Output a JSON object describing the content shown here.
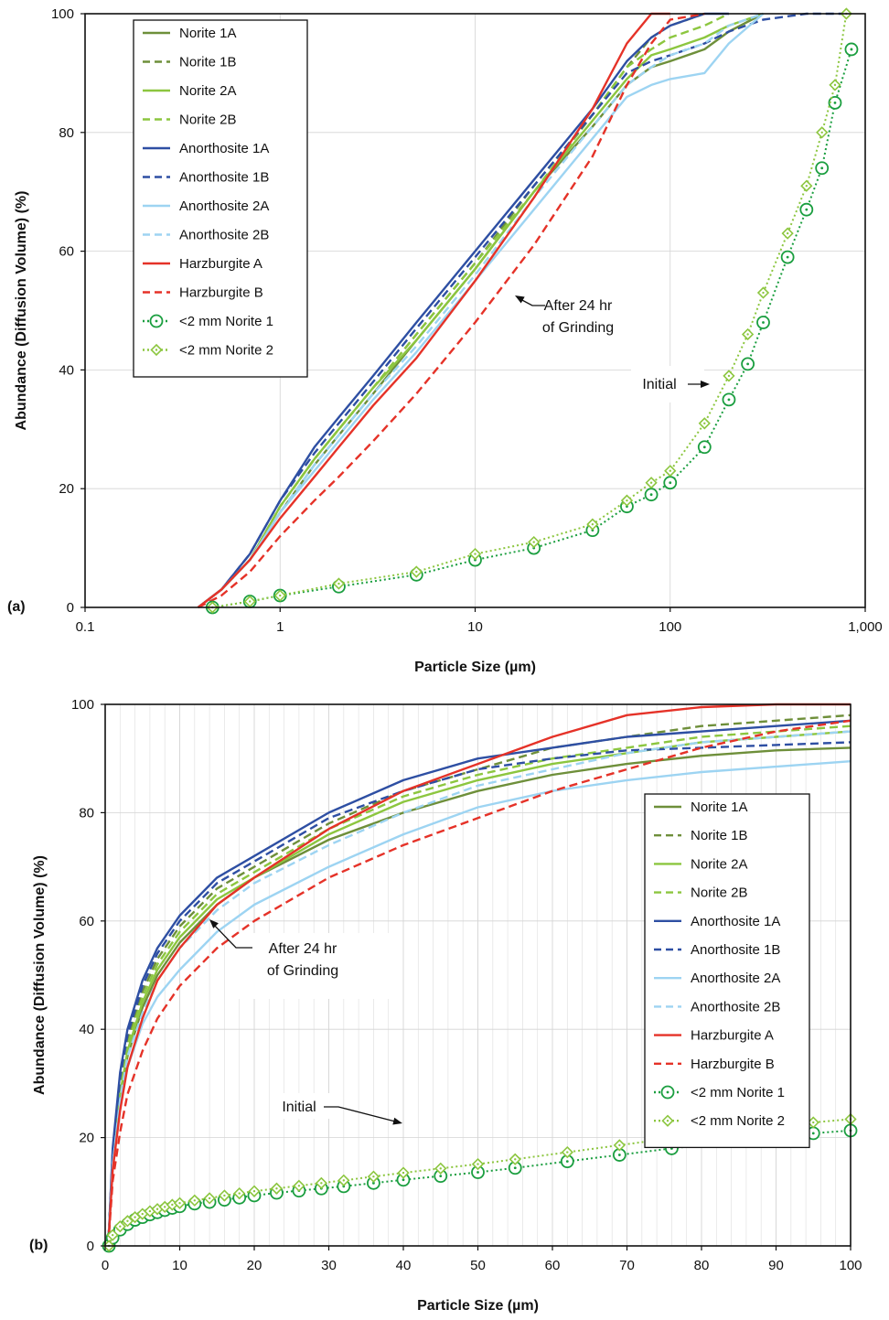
{
  "colors": {
    "norite1A": "#6e8f3a",
    "norite1B": "#6e8f3a",
    "norite2A": "#8cc63f",
    "norite2B": "#8cc63f",
    "anorthosite1A": "#2e4fa3",
    "anorthosite1B": "#2e4fa3",
    "anorthosite2A": "#9dd4f2",
    "anorthosite2B": "#9dd4f2",
    "harzburgiteA": "#e53228",
    "harzburgiteB": "#e53228",
    "initial1": "#1a9e3f",
    "initial2": "#8cc63f"
  },
  "legend_labels": [
    "Norite 1A",
    "Norite 1B",
    "Norite 2A",
    "Norite 2B",
    "Anorthosite 1A",
    "Anorthosite 1B",
    "Anorthosite 2A",
    "Anorthosite 2B",
    "Harzburgite A",
    "Harzburgite B",
    "<2 mm Norite 1",
    "<2 mm Norite 2"
  ],
  "chart_data": [
    {
      "panel": "(a)",
      "type": "line",
      "xlabel": "Particle Size (µm)",
      "ylabel": "Abundance (Diffusion Volume) (%)",
      "xscale": "log",
      "xlim": [
        0.1,
        1000
      ],
      "ylim": [
        0,
        100
      ],
      "xticks": [
        "0.1",
        "1",
        "10",
        "100",
        "1,000"
      ],
      "yticks": [
        "0",
        "20",
        "40",
        "60",
        "80",
        "100"
      ],
      "grid": true,
      "legend_position": "top-left",
      "annotations": [
        {
          "text": [
            "After 24 hr",
            "of Grinding"
          ]
        },
        {
          "text": [
            "Initial"
          ]
        }
      ],
      "series": [
        {
          "name": "Norite 1A",
          "style": "solid",
          "x": [
            0.38,
            0.5,
            0.7,
            1,
            1.5,
            2,
            3,
            5,
            10,
            20,
            40,
            60,
            80,
            100,
            150,
            200,
            300
          ],
          "y": [
            0,
            3,
            8,
            16,
            24,
            29,
            36,
            45,
            57,
            70,
            81,
            88,
            91,
            92,
            94,
            97,
            100
          ]
        },
        {
          "name": "Norite 1B",
          "style": "dashed",
          "x": [
            0.38,
            0.5,
            0.7,
            1,
            1.5,
            2,
            3,
            5,
            10,
            20,
            40,
            60,
            80,
            100,
            150
          ],
          "y": [
            0,
            3,
            8,
            17,
            25,
            30,
            37,
            46,
            58,
            71,
            83,
            91,
            96,
            98,
            100
          ]
        },
        {
          "name": "Norite 2A",
          "style": "solid",
          "x": [
            0.38,
            0.5,
            0.7,
            1,
            1.5,
            2,
            3,
            5,
            10,
            20,
            40,
            60,
            80,
            100,
            150,
            200,
            300
          ],
          "y": [
            0,
            3,
            8,
            17,
            25,
            30,
            37,
            45,
            57,
            70,
            82,
            89,
            93,
            94,
            96,
            98,
            100
          ]
        },
        {
          "name": "Norite 2B",
          "style": "dashed",
          "x": [
            0.38,
            0.5,
            0.7,
            1,
            1.5,
            2,
            3,
            5,
            10,
            20,
            40,
            60,
            80,
            100,
            150,
            200
          ],
          "y": [
            0,
            3,
            8,
            17,
            25,
            30,
            37,
            46,
            58,
            70,
            83,
            91,
            94,
            96,
            98,
            100
          ]
        },
        {
          "name": "Anorthosite 1A",
          "style": "solid",
          "x": [
            0.38,
            0.5,
            0.7,
            1,
            1.5,
            2,
            3,
            5,
            10,
            20,
            40,
            60,
            80,
            100,
            150,
            200
          ],
          "y": [
            0,
            3,
            9,
            18,
            27,
            32,
            39,
            48,
            60,
            72,
            84,
            92,
            96,
            98,
            100,
            100
          ]
        },
        {
          "name": "Anorthosite 1B",
          "style": "dashed",
          "x": [
            0.38,
            0.5,
            0.7,
            1,
            1.5,
            2,
            3,
            5,
            10,
            20,
            40,
            60,
            80,
            100,
            150,
            200,
            300,
            500,
            800
          ],
          "y": [
            0,
            3,
            9,
            18,
            26,
            31,
            38,
            47,
            59,
            71,
            83,
            90,
            92,
            93,
            95,
            97,
            99,
            100,
            100
          ]
        },
        {
          "name": "Anorthosite 2A",
          "style": "solid",
          "x": [
            0.38,
            0.5,
            0.7,
            1,
            1.5,
            2,
            3,
            5,
            10,
            20,
            40,
            60,
            80,
            100,
            150,
            200,
            300
          ],
          "y": [
            0,
            3,
            8,
            16,
            23,
            28,
            35,
            43,
            55,
            67,
            79,
            86,
            88,
            89,
            90,
            95,
            100
          ]
        },
        {
          "name": "Anorthosite 2B",
          "style": "dashed",
          "x": [
            0.38,
            0.5,
            0.7,
            1,
            1.5,
            2,
            3,
            5,
            10,
            20,
            40,
            60,
            80,
            100,
            150,
            200,
            300
          ],
          "y": [
            0,
            3,
            8,
            16,
            24,
            29,
            36,
            44,
            56,
            69,
            81,
            88,
            91,
            93,
            95,
            98,
            100
          ]
        },
        {
          "name": "Harzburgite A",
          "style": "solid",
          "x": [
            0.38,
            0.5,
            0.7,
            1,
            1.5,
            2,
            3,
            5,
            10,
            20,
            40,
            60,
            80,
            100
          ],
          "y": [
            0,
            3,
            8,
            15,
            22,
            27,
            34,
            42,
            55,
            69,
            84,
            95,
            100,
            100
          ]
        },
        {
          "name": "Harzburgite B",
          "style": "dashed",
          "x": [
            0.38,
            0.5,
            0.7,
            1,
            1.5,
            2,
            3,
            5,
            10,
            20,
            40,
            60,
            80,
            100,
            150
          ],
          "y": [
            0,
            2,
            6,
            12,
            18,
            22,
            28,
            36,
            48,
            61,
            76,
            88,
            95,
            99,
            100
          ]
        },
        {
          "name": "<2 mm Norite 1",
          "style": "dotted-circle",
          "x": [
            0.45,
            0.7,
            1,
            2,
            5,
            10,
            20,
            40,
            60,
            80,
            100,
            150,
            200,
            250,
            300,
            400,
            500,
            600,
            700,
            850
          ],
          "y": [
            0,
            1,
            2,
            3.5,
            5.5,
            8,
            10,
            13,
            17,
            19,
            21,
            27,
            35,
            41,
            48,
            59,
            67,
            74,
            85,
            94
          ]
        },
        {
          "name": "<2 mm Norite 2",
          "style": "dotted-diamond",
          "x": [
            0.45,
            0.7,
            1,
            2,
            5,
            10,
            20,
            40,
            60,
            80,
            100,
            150,
            200,
            250,
            300,
            400,
            500,
            600,
            700,
            800
          ],
          "y": [
            0,
            1,
            2,
            4,
            6,
            9,
            11,
            14,
            18,
            21,
            23,
            31,
            39,
            46,
            53,
            63,
            71,
            80,
            88,
            100
          ]
        }
      ]
    },
    {
      "panel": "(b)",
      "type": "line",
      "xlabel": "Particle Size (µm)",
      "ylabel": "Abundance (Diffusion Volume) (%)",
      "xscale": "linear",
      "xlim": [
        0,
        100
      ],
      "ylim": [
        0,
        100
      ],
      "xticks": [
        "0",
        "10",
        "20",
        "30",
        "40",
        "50",
        "60",
        "70",
        "80",
        "90",
        "100"
      ],
      "yticks": [
        "0",
        "20",
        "40",
        "60",
        "80",
        "100"
      ],
      "grid": true,
      "legend_position": "right",
      "annotations": [
        {
          "text": [
            "After 24 hr",
            "of Grinding"
          ]
        },
        {
          "text": [
            "Initial"
          ]
        }
      ],
      "series": [
        {
          "name": "Norite 1A",
          "style": "solid",
          "x": [
            0.4,
            1,
            2,
            3,
            5,
            7,
            10,
            15,
            20,
            30,
            40,
            50,
            60,
            70,
            80,
            90,
            100
          ],
          "y": [
            0,
            15,
            27,
            35,
            44,
            50,
            56,
            63,
            68,
            75,
            80,
            84,
            87,
            89,
            90.5,
            91.5,
            92
          ]
        },
        {
          "name": "Norite 1B",
          "style": "dashed",
          "x": [
            0.4,
            1,
            2,
            3,
            5,
            7,
            10,
            15,
            20,
            30,
            40,
            50,
            60,
            70,
            80,
            90,
            100
          ],
          "y": [
            0,
            17,
            30,
            38,
            47,
            53,
            59,
            66,
            70,
            78,
            84,
            88,
            92,
            94,
            96,
            97,
            98
          ]
        },
        {
          "name": "Norite 2A",
          "style": "solid",
          "x": [
            0.4,
            1,
            2,
            3,
            5,
            7,
            10,
            15,
            20,
            30,
            40,
            50,
            60,
            70,
            80,
            90,
            100
          ],
          "y": [
            0,
            16,
            28,
            36,
            45,
            51,
            57,
            64,
            68,
            76,
            82,
            86,
            89,
            91,
            93,
            94,
            95
          ]
        },
        {
          "name": "Norite 2B",
          "style": "dashed",
          "x": [
            0.4,
            1,
            2,
            3,
            5,
            7,
            10,
            15,
            20,
            30,
            40,
            50,
            60,
            70,
            80,
            90,
            100
          ],
          "y": [
            0,
            16,
            29,
            37,
            46,
            52,
            58,
            65,
            69,
            77,
            83,
            87,
            90,
            92,
            94,
            95,
            96
          ]
        },
        {
          "name": "Anorthosite 1A",
          "style": "solid",
          "x": [
            0.4,
            1,
            2,
            3,
            5,
            7,
            10,
            15,
            20,
            30,
            40,
            50,
            60,
            70,
            80,
            90,
            100
          ],
          "y": [
            0,
            18,
            32,
            40,
            49,
            55,
            61,
            68,
            72,
            80,
            86,
            90,
            92,
            94,
            95,
            96,
            97
          ]
        },
        {
          "name": "Anorthosite 1B",
          "style": "dashed",
          "x": [
            0.4,
            1,
            2,
            3,
            5,
            7,
            10,
            15,
            20,
            30,
            40,
            50,
            60,
            70,
            80,
            90,
            100
          ],
          "y": [
            0,
            17,
            31,
            39,
            48,
            54,
            60,
            67,
            71,
            79,
            84,
            88,
            90,
            91.5,
            92,
            92.5,
            93
          ]
        },
        {
          "name": "Anorthosite 2A",
          "style": "solid",
          "x": [
            0.4,
            1,
            2,
            3,
            5,
            7,
            10,
            15,
            20,
            30,
            40,
            50,
            60,
            70,
            80,
            90,
            100
          ],
          "y": [
            0,
            15,
            26,
            33,
            41,
            46,
            51,
            58,
            63,
            70,
            76,
            81,
            84,
            86,
            87.5,
            88.5,
            89.5
          ]
        },
        {
          "name": "Anorthosite 2B",
          "style": "dashed",
          "x": [
            0.4,
            1,
            2,
            3,
            5,
            7,
            10,
            15,
            20,
            30,
            40,
            50,
            60,
            70,
            80,
            90,
            100
          ],
          "y": [
            0,
            15,
            27,
            35,
            43,
            49,
            55,
            62,
            67,
            74,
            80,
            85,
            88,
            91,
            93,
            94,
            95
          ]
        },
        {
          "name": "Harzburgite A",
          "style": "solid",
          "x": [
            0.4,
            1,
            2,
            3,
            5,
            7,
            10,
            15,
            20,
            30,
            40,
            50,
            60,
            70,
            80,
            90,
            100
          ],
          "y": [
            0,
            14,
            25,
            33,
            42,
            49,
            55,
            63,
            68,
            77,
            84,
            89,
            94,
            98,
            99.5,
            100,
            100
          ]
        },
        {
          "name": "Harzburgite B",
          "style": "dashed",
          "x": [
            0.4,
            1,
            2,
            3,
            5,
            7,
            10,
            15,
            20,
            30,
            40,
            50,
            60,
            70,
            80,
            90,
            100
          ],
          "y": [
            0,
            12,
            21,
            28,
            36,
            42,
            48,
            55,
            60,
            68,
            74,
            79,
            84,
            88,
            92,
            95,
            97
          ]
        },
        {
          "name": "<2 mm Norite 1",
          "style": "dotted-circle",
          "x": [
            0.5,
            1,
            2,
            3,
            4,
            5,
            6,
            7,
            8,
            9,
            10,
            12,
            14,
            16,
            18,
            20,
            23,
            26,
            29,
            32,
            36,
            40,
            45,
            50,
            55,
            62,
            69,
            76,
            85,
            95,
            100
          ],
          "y": [
            0,
            1.5,
            3,
            4,
            4.8,
            5.3,
            5.8,
            6.2,
            6.6,
            7,
            7.3,
            7.8,
            8.1,
            8.5,
            8.9,
            9.3,
            9.8,
            10.2,
            10.6,
            11,
            11.6,
            12.2,
            12.9,
            13.6,
            14.4,
            15.6,
            16.8,
            18,
            19.4,
            20.8,
            21.3
          ]
        },
        {
          "name": "<2 mm Norite 2",
          "style": "dotted-diamond",
          "x": [
            0.5,
            1,
            2,
            3,
            4,
            5,
            6,
            7,
            8,
            9,
            10,
            12,
            14,
            16,
            18,
            20,
            23,
            26,
            29,
            32,
            36,
            40,
            45,
            50,
            55,
            62,
            69,
            76,
            85,
            95,
            100
          ],
          "y": [
            0,
            2,
            3.6,
            4.6,
            5.3,
            5.9,
            6.4,
            6.8,
            7.2,
            7.6,
            7.9,
            8.4,
            8.8,
            9.3,
            9.7,
            10.1,
            10.6,
            11.1,
            11.6,
            12.1,
            12.8,
            13.5,
            14.3,
            15.1,
            16,
            17.3,
            18.6,
            19.9,
            21.4,
            22.8,
            23.4
          ]
        }
      ]
    }
  ]
}
